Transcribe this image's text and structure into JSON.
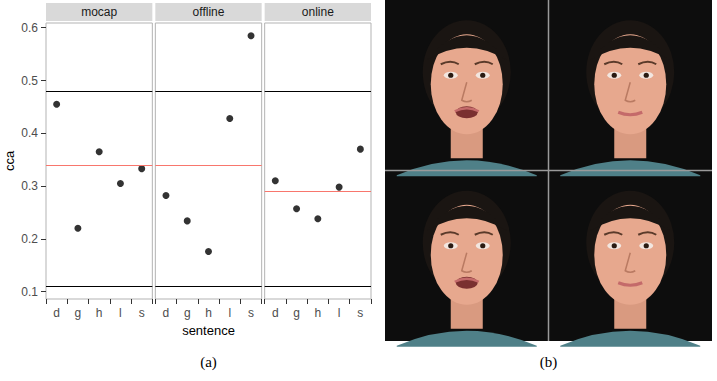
{
  "chart_data": [
    {
      "type": "scatter",
      "title": "mocap",
      "categories": [
        "d",
        "g",
        "h",
        "l",
        "s"
      ],
      "values": [
        0.455,
        0.22,
        0.365,
        0.305,
        0.333
      ],
      "color": "#000000",
      "marker": "circle",
      "ylim": [
        0.086,
        0.609
      ],
      "yticks": [
        0.1,
        0.2,
        0.3,
        0.4,
        0.5,
        0.6
      ],
      "grid": false,
      "hlines": [
        {
          "value": 0.48,
          "color": "#000000"
        },
        {
          "value": 0.11,
          "color": "#000000"
        },
        {
          "value": 0.336,
          "color": "#f8766d"
        }
      ]
    },
    {
      "type": "scatter",
      "title": "offline",
      "categories": [
        "d",
        "g",
        "h",
        "l",
        "s"
      ],
      "values": [
        0.282,
        0.234,
        0.176,
        0.428,
        0.585
      ],
      "color": "#000000",
      "marker": "circle",
      "ylim": [
        0.086,
        0.609
      ],
      "yticks": [
        0.1,
        0.2,
        0.3,
        0.4,
        0.5,
        0.6
      ],
      "grid": false,
      "tick_labels": "x",
      "hlines": [
        {
          "value": 0.48,
          "color": "#000000"
        },
        {
          "value": 0.11,
          "color": "#000000"
        },
        {
          "value": 0.342,
          "color": "#f8766d"
        }
      ]
    },
    {
      "type": "scatter",
      "title": "online",
      "categories": [
        "d",
        "g",
        "h",
        "l",
        "s"
      ],
      "values": [
        0.31,
        0.257,
        0.238,
        0.298,
        0.37
      ],
      "color": "#000000",
      "marker": "circle",
      "ylim": [
        0.086,
        0.609
      ],
      "yticks": [
        0.1,
        0.2,
        0.3,
        0.4,
        0.5,
        0.6
      ],
      "grid": false,
      "tick_labels": "x",
      "hlines": [
        {
          "value": 0.48,
          "color": "#000000"
        },
        {
          "value": 0.11,
          "color": "#000000"
        },
        {
          "value": 0.295,
          "color": "#f8766d"
        }
      ]
    }
  ],
  "x_label": "sentence",
  "y_label": "cca",
  "panels": [
    {
      "label": "(a)"
    },
    {
      "label": "(b)"
    }
  ]
}
